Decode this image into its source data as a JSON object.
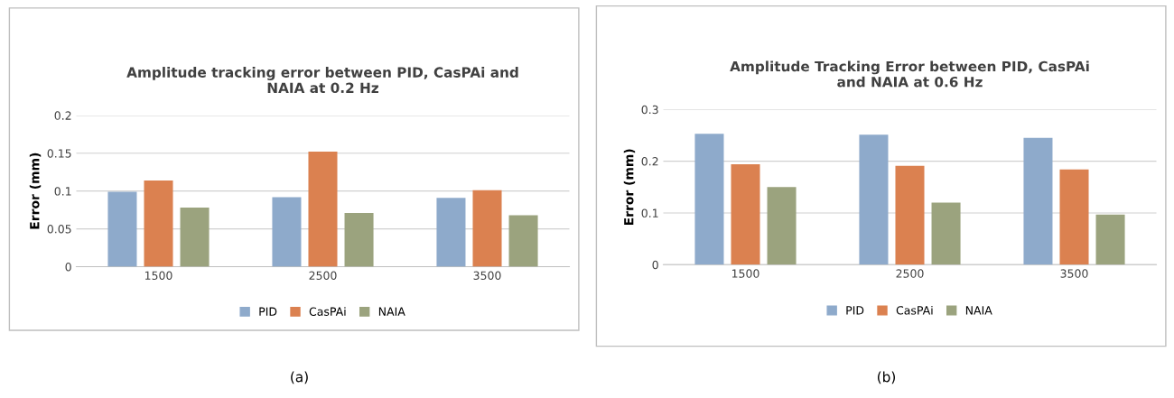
{
  "chart_data": [
    {
      "type": "bar",
      "title": "Amplitude tracking error between PID, CasPAi and\nNAIA at 0.2 Hz",
      "ylabel": "Error (mm)",
      "categories": [
        "1500",
        "2500",
        "3500"
      ],
      "series": [
        {
          "name": "PID",
          "color": "#8eaacb",
          "values": [
            0.099,
            0.092,
            0.091
          ]
        },
        {
          "name": "CasPAi",
          "color": "#db8150",
          "values": [
            0.114,
            0.152,
            0.101
          ]
        },
        {
          "name": "NAIA",
          "color": "#9ba37e",
          "values": [
            0.078,
            0.071,
            0.068
          ]
        }
      ],
      "ylim": [
        0,
        0.2
      ],
      "yticks": [
        0,
        0.05,
        0.1,
        0.15,
        0.2
      ],
      "grid": "y",
      "legend": "bottom",
      "annotations": [
        "(a)"
      ]
    },
    {
      "type": "bar",
      "title": "Amplitude Tracking Error between PID, CasPAi\nand NAIA at 0.6 Hz",
      "ylabel": "Error (mm)",
      "categories": [
        "1500",
        "2500",
        "3500"
      ],
      "series": [
        {
          "name": "PID",
          "color": "#8eaacb",
          "values": [
            0.253,
            0.251,
            0.245
          ]
        },
        {
          "name": "CasPAi",
          "color": "#db8150",
          "values": [
            0.194,
            0.191,
            0.184
          ]
        },
        {
          "name": "NAIA",
          "color": "#9ba37e",
          "values": [
            0.15,
            0.12,
            0.097
          ]
        }
      ],
      "ylim": [
        0,
        0.3
      ],
      "yticks": [
        0,
        0.1,
        0.2,
        0.3
      ],
      "grid": "y",
      "legend": "bottom",
      "annotations": [
        "(b)"
      ]
    }
  ]
}
